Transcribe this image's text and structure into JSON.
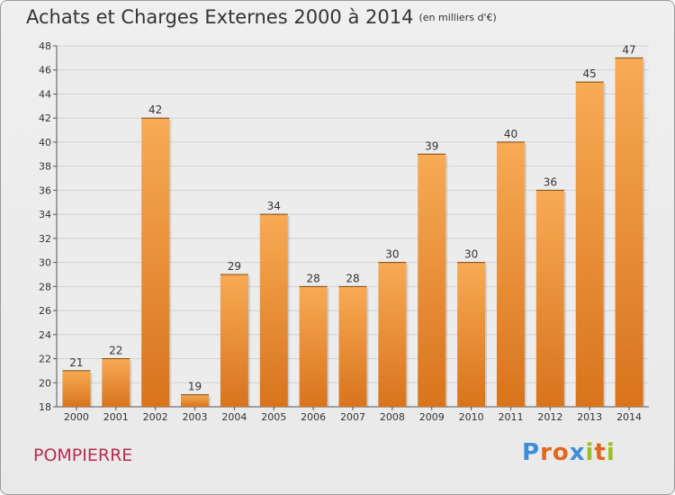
{
  "header": {
    "title": "Achats et Charges Externes 2000 à 2014",
    "unit": "(en milliers d'€)"
  },
  "footer": {
    "place": "POMPIERRE",
    "logo_text": "Proxiti"
  },
  "colors": {
    "bar_light": "#f8aa55",
    "bar_dark": "#d8741c",
    "place": "#b92c53"
  },
  "chart_data": {
    "type": "bar",
    "title": "Achats et Charges Externes 2000 à 2014",
    "subtitle": "(en milliers d'€)",
    "categories": [
      "2000",
      "2001",
      "2002",
      "2003",
      "2004",
      "2005",
      "2006",
      "2007",
      "2008",
      "2009",
      "2010",
      "2011",
      "2012",
      "2013",
      "2014"
    ],
    "values": [
      21,
      22,
      42,
      19,
      29,
      34,
      28,
      28,
      30,
      39,
      30,
      40,
      36,
      45,
      47
    ],
    "ylim": [
      18,
      48
    ],
    "yticks": [
      18,
      20,
      22,
      24,
      26,
      28,
      30,
      32,
      34,
      36,
      38,
      40,
      42,
      44,
      46,
      48
    ],
    "grid": true,
    "data_labels": true
  }
}
